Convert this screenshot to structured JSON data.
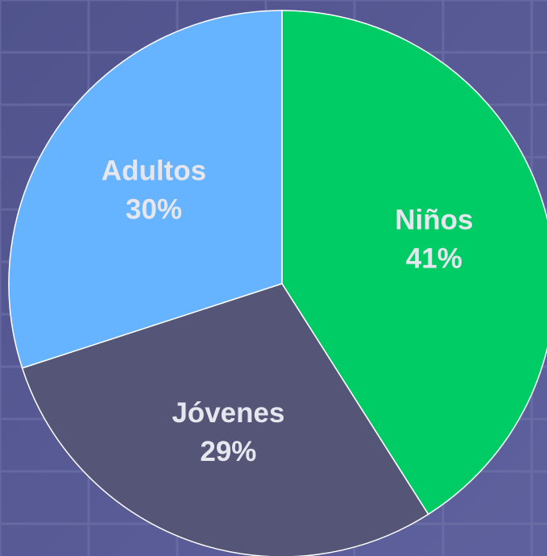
{
  "chart_data": {
    "type": "pie",
    "categories": [
      "Niños",
      "Jóvenes",
      "Adultos"
    ],
    "values": [
      41,
      29,
      30
    ],
    "value_labels": [
      "41%",
      "29%",
      "30%"
    ],
    "colors": [
      "#00cc66",
      "#555577",
      "#66b3ff"
    ]
  }
}
